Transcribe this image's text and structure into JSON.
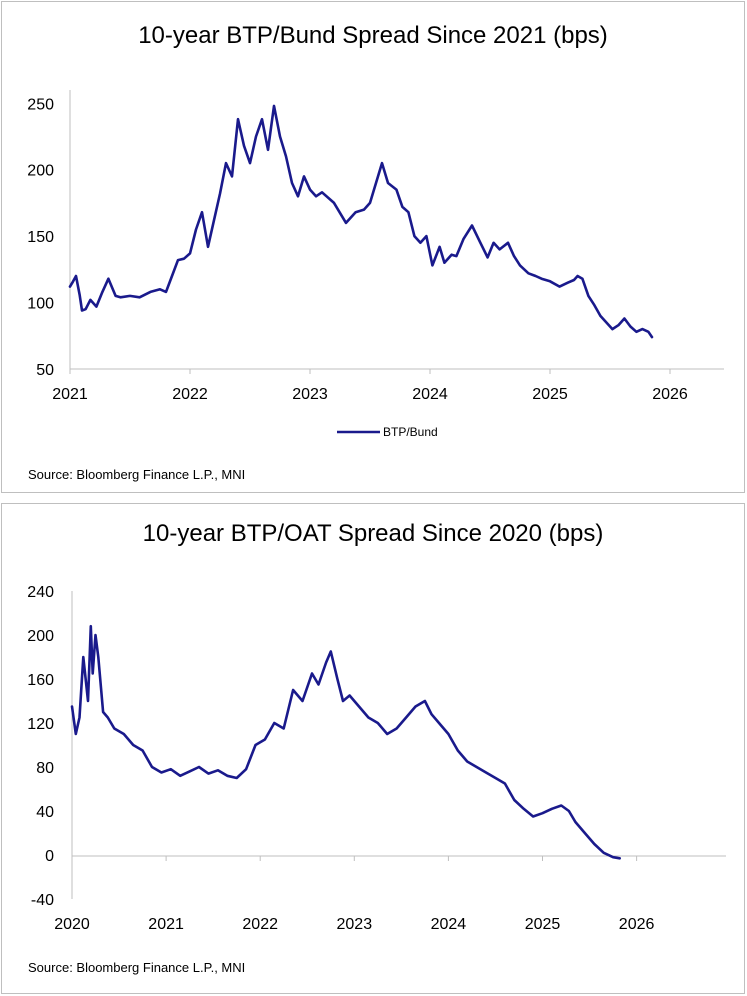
{
  "colors": {
    "series": "#1a1a8c",
    "axis": "#bfbfbf"
  },
  "chart_data": [
    {
      "type": "line",
      "title": "10-year BTP/Bund Spread Since 2021 (bps)",
      "source": "Source: Bloomberg Finance L.P., MNI",
      "xlabel": "",
      "ylabel": "",
      "xlim": [
        2021,
        2026.45
      ],
      "ylim": [
        50,
        260
      ],
      "yticks": [
        50,
        100,
        150,
        200,
        250
      ],
      "xticks": [
        2021,
        2022,
        2023,
        2024,
        2025,
        2026
      ],
      "legend": {
        "position": "bottom-center"
      },
      "grid": false,
      "series": [
        {
          "name": "BTP/Bund",
          "x": [
            2021.0,
            2021.02,
            2021.05,
            2021.08,
            2021.1,
            2021.13,
            2021.17,
            2021.22,
            2021.27,
            2021.32,
            2021.38,
            2021.42,
            2021.5,
            2021.58,
            2021.67,
            2021.75,
            2021.8,
            2021.85,
            2021.9,
            2021.95,
            2022.0,
            2022.05,
            2022.1,
            2022.15,
            2022.2,
            2022.25,
            2022.3,
            2022.35,
            2022.4,
            2022.45,
            2022.5,
            2022.55,
            2022.6,
            2022.65,
            2022.7,
            2022.75,
            2022.8,
            2022.85,
            2022.9,
            2022.95,
            2023.0,
            2023.05,
            2023.1,
            2023.2,
            2023.3,
            2023.38,
            2023.45,
            2023.5,
            2023.55,
            2023.6,
            2023.65,
            2023.72,
            2023.77,
            2023.82,
            2023.87,
            2023.92,
            2023.97,
            2024.02,
            2024.08,
            2024.12,
            2024.18,
            2024.22,
            2024.28,
            2024.35,
            2024.42,
            2024.48,
            2024.53,
            2024.58,
            2024.65,
            2024.7,
            2024.75,
            2024.82,
            2024.88,
            2024.93,
            2025.0,
            2025.08,
            2025.15,
            2025.2,
            2025.23,
            2025.27,
            2025.32,
            2025.37,
            2025.42,
            2025.47,
            2025.52,
            2025.57,
            2025.62,
            2025.67,
            2025.72,
            2025.77,
            2025.82,
            2025.85
          ],
          "values": [
            112,
            115,
            120,
            106,
            94,
            95,
            102,
            97,
            108,
            118,
            105,
            104,
            105,
            104,
            108,
            110,
            108,
            120,
            132,
            133,
            137,
            155,
            168,
            142,
            162,
            182,
            205,
            195,
            238,
            218,
            205,
            225,
            238,
            215,
            248,
            225,
            210,
            190,
            180,
            195,
            185,
            180,
            183,
            175,
            160,
            168,
            170,
            175,
            190,
            205,
            190,
            185,
            172,
            168,
            150,
            145,
            150,
            128,
            142,
            130,
            136,
            135,
            148,
            158,
            145,
            134,
            145,
            140,
            145,
            135,
            128,
            122,
            120,
            118,
            116,
            112,
            115,
            117,
            120,
            118,
            105,
            98,
            90,
            85,
            80,
            83,
            88,
            82,
            78,
            80,
            78,
            74
          ]
        }
      ]
    },
    {
      "type": "line",
      "title": "10-year BTP/OAT Spread Since 2020 (bps)",
      "source": "Source: Bloomberg Finance L.P., MNI",
      "xlabel": "",
      "ylabel": "",
      "xlim": [
        2020,
        2026.95
      ],
      "ylim": [
        -40,
        240
      ],
      "yticks": [
        -40,
        0,
        40,
        80,
        120,
        160,
        200,
        240
      ],
      "xticks": [
        2020,
        2021,
        2022,
        2023,
        2024,
        2025,
        2026
      ],
      "legend": null,
      "grid": false,
      "series": [
        {
          "name": "BTP/OAT",
          "x": [
            2020.0,
            2020.04,
            2020.08,
            2020.12,
            2020.17,
            2020.2,
            2020.22,
            2020.25,
            2020.28,
            2020.33,
            2020.38,
            2020.45,
            2020.55,
            2020.65,
            2020.75,
            2020.85,
            2020.95,
            2021.05,
            2021.15,
            2021.25,
            2021.35,
            2021.45,
            2021.55,
            2021.65,
            2021.75,
            2021.85,
            2021.95,
            2022.05,
            2022.15,
            2022.25,
            2022.35,
            2022.45,
            2022.55,
            2022.62,
            2022.7,
            2022.75,
            2022.82,
            2022.88,
            2022.95,
            2023.05,
            2023.15,
            2023.25,
            2023.35,
            2023.45,
            2023.55,
            2023.65,
            2023.75,
            2023.82,
            2023.9,
            2024.0,
            2024.1,
            2024.2,
            2024.3,
            2024.4,
            2024.5,
            2024.6,
            2024.7,
            2024.8,
            2024.9,
            2025.0,
            2025.1,
            2025.2,
            2025.28,
            2025.35,
            2025.45,
            2025.55,
            2025.65,
            2025.75,
            2025.82
          ],
          "values": [
            135,
            110,
            125,
            180,
            140,
            208,
            165,
            200,
            180,
            130,
            125,
            115,
            110,
            100,
            95,
            80,
            75,
            78,
            72,
            76,
            80,
            74,
            77,
            72,
            70,
            78,
            100,
            105,
            120,
            115,
            150,
            140,
            165,
            155,
            175,
            185,
            160,
            140,
            145,
            135,
            125,
            120,
            110,
            115,
            125,
            135,
            140,
            128,
            120,
            110,
            95,
            85,
            80,
            75,
            70,
            65,
            50,
            42,
            35,
            38,
            42,
            45,
            40,
            30,
            20,
            10,
            2,
            -2,
            -3
          ]
        }
      ]
    }
  ]
}
